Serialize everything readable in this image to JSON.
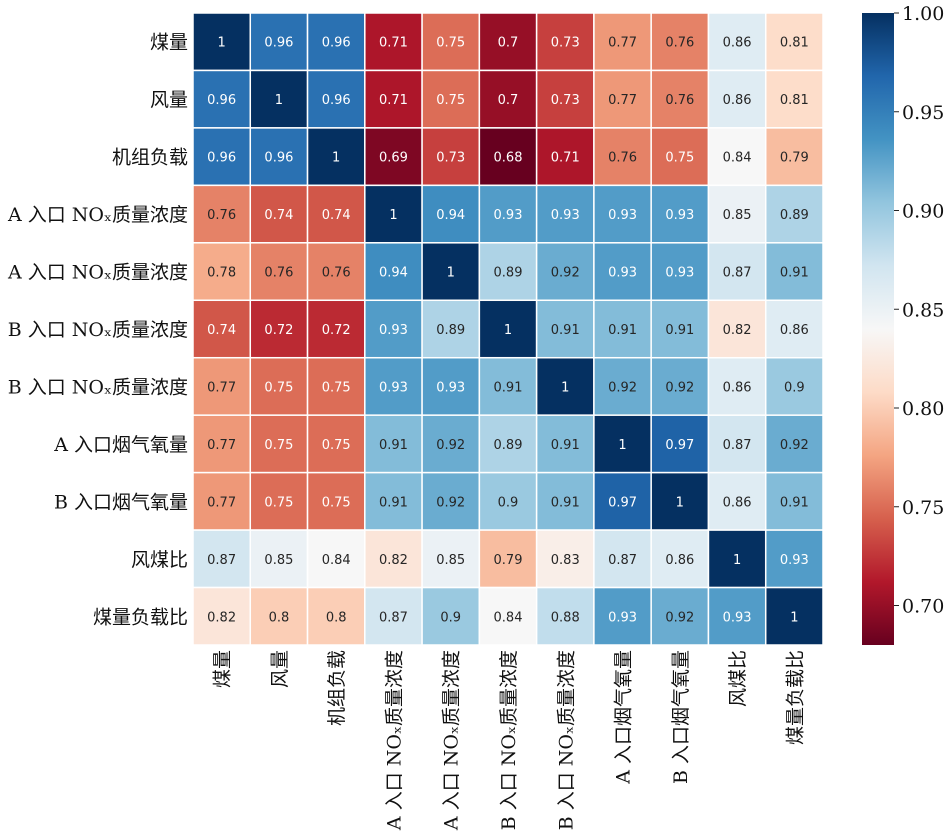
{
  "chart_data": {
    "type": "heatmap",
    "title": "",
    "xlabel": "",
    "ylabel": "",
    "row_labels": [
      "煤量",
      "风量",
      "机组负载",
      "A 入口 NOₓ质量浓度",
      "A 入口 NOₓ质量浓度",
      "B 入口 NOₓ质量浓度",
      "B 入口 NOₓ质量浓度",
      "A 入口烟气氧量",
      "B 入口烟气氧量",
      "风煤比",
      "煤量负载比"
    ],
    "col_labels": [
      "煤量",
      "风量",
      "机组负载",
      "A 入口 NOₓ质量浓度",
      "A 入口 NOₓ质量浓度",
      "B 入口 NOₓ质量浓度",
      "B 入口 NOₓ质量浓度",
      "A 入口烟气氧量",
      "B 入口烟气氧量",
      "风煤比",
      "煤量负载比"
    ],
    "values": [
      [
        1,
        0.96,
        0.96,
        0.71,
        0.75,
        0.7,
        0.73,
        0.77,
        0.76,
        0.86,
        0.81
      ],
      [
        0.96,
        1,
        0.96,
        0.71,
        0.75,
        0.7,
        0.73,
        0.77,
        0.76,
        0.86,
        0.81
      ],
      [
        0.96,
        0.96,
        1,
        0.69,
        0.73,
        0.68,
        0.71,
        0.76,
        0.75,
        0.84,
        0.79
      ],
      [
        0.76,
        0.74,
        0.74,
        1,
        0.94,
        0.93,
        0.93,
        0.93,
        0.93,
        0.85,
        0.89
      ],
      [
        0.78,
        0.76,
        0.76,
        0.94,
        1,
        0.89,
        0.92,
        0.93,
        0.93,
        0.87,
        0.91
      ],
      [
        0.74,
        0.72,
        0.72,
        0.93,
        0.89,
        1,
        0.91,
        0.91,
        0.91,
        0.82,
        0.86
      ],
      [
        0.77,
        0.75,
        0.75,
        0.93,
        0.93,
        0.91,
        1,
        0.92,
        0.92,
        0.86,
        0.9
      ],
      [
        0.77,
        0.75,
        0.75,
        0.91,
        0.92,
        0.89,
        0.91,
        1,
        0.97,
        0.87,
        0.92
      ],
      [
        0.77,
        0.75,
        0.75,
        0.91,
        0.92,
        0.9,
        0.91,
        0.97,
        1,
        0.86,
        0.91
      ],
      [
        0.87,
        0.85,
        0.84,
        0.82,
        0.85,
        0.79,
        0.83,
        0.87,
        0.86,
        1,
        0.93
      ],
      [
        0.82,
        0.8,
        0.8,
        0.87,
        0.9,
        0.84,
        0.88,
        0.93,
        0.92,
        0.93,
        1
      ]
    ],
    "colorbar": {
      "vmin": 0.68,
      "vmax": 1.0,
      "ticks": [
        0.7,
        0.75,
        0.8,
        0.85,
        0.9,
        0.95,
        1.0
      ],
      "tick_labels": [
        "0.70",
        "0.75",
        "0.80",
        "0.85",
        "0.90",
        "0.95",
        "1.00"
      ],
      "colormap": "RdBu",
      "stops": [
        "#67001f",
        "#b2182b",
        "#d6604d",
        "#f4a582",
        "#fddbc7",
        "#f7f7f7",
        "#d1e5f0",
        "#92c5de",
        "#4393c3",
        "#2166ac",
        "#053061"
      ]
    },
    "legend": "colorbar-right",
    "annotations": true
  }
}
